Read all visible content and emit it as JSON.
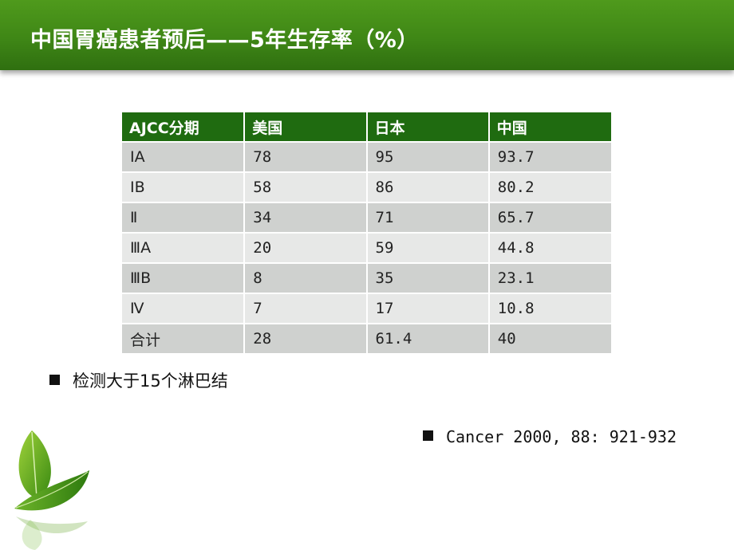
{
  "slide": {
    "title": "中国胃癌患者预后——5年生存率（%）"
  },
  "table": {
    "headers": [
      "AJCC分期",
      "美国",
      "日本",
      "中国"
    ],
    "rows": [
      [
        "ⅠA",
        "78",
        "95",
        "93.7"
      ],
      [
        "ⅠB",
        "58",
        "86",
        "80.2"
      ],
      [
        "Ⅱ",
        "34",
        "71",
        "65.7"
      ],
      [
        "ⅢA",
        "20",
        "59",
        "44.8"
      ],
      [
        "ⅢB",
        "8",
        "35",
        "23.1"
      ],
      [
        "Ⅳ",
        "7",
        "17",
        "10.8"
      ],
      [
        "合计",
        "28",
        "61.4",
        "40"
      ]
    ]
  },
  "notes": {
    "note1": "检测大于15个淋巴结",
    "note2": "Cancer 2000, 88: 921-932"
  },
  "colors": {
    "title_bar": "#3f8716",
    "header_bg": "#1f6b10",
    "row_odd": "#cfd1cf",
    "row_even": "#e7e8e7"
  },
  "icons": {
    "decoration": "leaf-icon",
    "bullet": "square-bullet-icon"
  }
}
